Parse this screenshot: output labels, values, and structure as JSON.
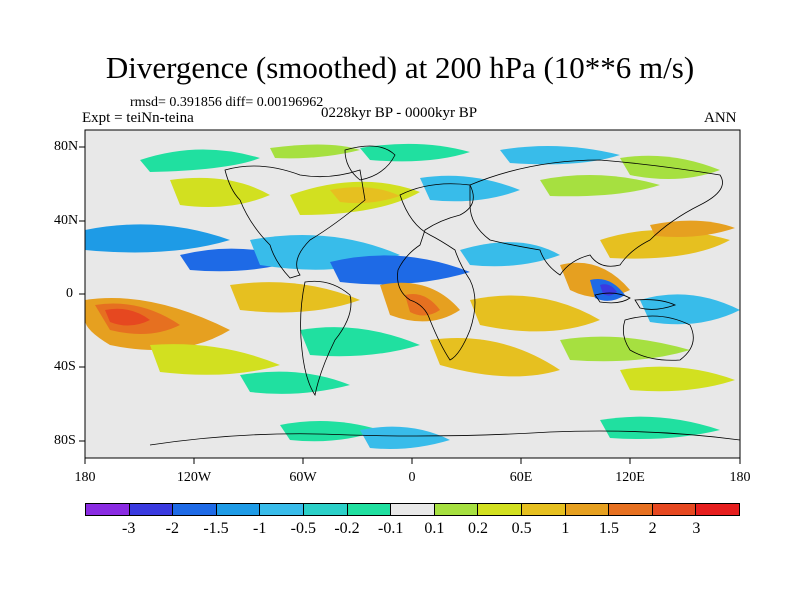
{
  "title": "Divergence (smoothed) at 200 hPa (10**6 m/s)",
  "stats": "rmsd= 0.391856 diff= 0.00196962",
  "experiment": "Expt = teiNn-teina",
  "period": "0228kyr BP - 0000kyr BP",
  "season": "ANN",
  "lat_labels": [
    "80N",
    "40N",
    "0",
    "40S",
    "80S"
  ],
  "lon_labels": [
    "180",
    "120W",
    "60W",
    "0",
    "60E",
    "120E",
    "180"
  ],
  "colorbar": {
    "colors": [
      "#8a2be2",
      "#3a3ae0",
      "#1e6ae6",
      "#1e9be6",
      "#38bcea",
      "#2bd0c8",
      "#20e0a0",
      "#e8e8e8",
      "#a6e040",
      "#d2e020",
      "#e6c020",
      "#e6a020",
      "#e67020",
      "#e64820",
      "#e61e1e"
    ],
    "labels": [
      "-3",
      "-2",
      "-1.5",
      "-1",
      "-0.5",
      "-0.2",
      "-0.1",
      "0.1",
      "0.2",
      "0.5",
      "1",
      "1.5",
      "2",
      "3"
    ]
  }
}
